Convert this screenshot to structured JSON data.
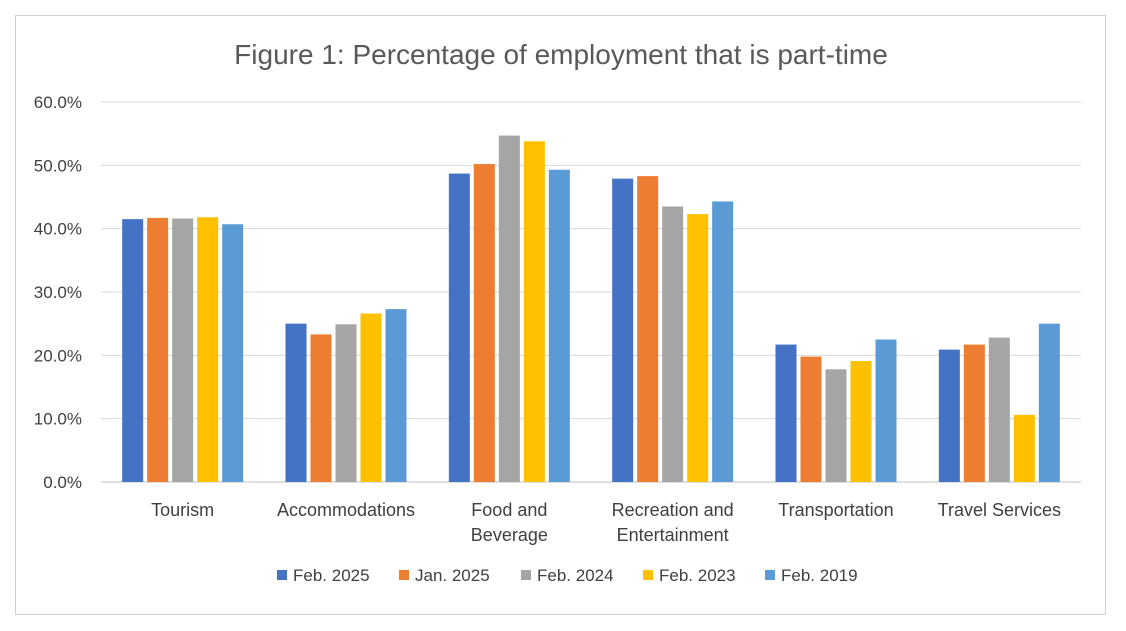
{
  "chart_data": {
    "type": "bar",
    "title": "Figure 1: Percentage of employment that is part-time",
    "categories": [
      [
        "Tourism"
      ],
      [
        "Accommodations"
      ],
      [
        "Food and",
        "Beverage"
      ],
      [
        "Recreation and",
        "Entertainment"
      ],
      [
        "Transportation"
      ],
      [
        "Travel Services"
      ]
    ],
    "series": [
      {
        "name": "Feb. 2025",
        "color": "#4472C4",
        "values": [
          41.5,
          25.0,
          48.7,
          47.9,
          21.7,
          20.9
        ]
      },
      {
        "name": "Jan. 2025",
        "color": "#ED7D31",
        "values": [
          41.7,
          23.3,
          50.2,
          48.3,
          19.8,
          21.7
        ]
      },
      {
        "name": "Feb. 2024",
        "color": "#A5A5A5",
        "values": [
          41.6,
          24.9,
          54.7,
          43.5,
          17.8,
          22.8
        ]
      },
      {
        "name": "Feb. 2023",
        "color": "#FFC000",
        "values": [
          41.8,
          26.6,
          53.8,
          42.3,
          19.1,
          10.6
        ]
      },
      {
        "name": "Feb. 2019",
        "color": "#5B9BD5",
        "values": [
          40.7,
          27.3,
          49.3,
          44.3,
          22.5,
          25.0
        ]
      }
    ],
    "yticks": [
      "0.0%",
      "10.0%",
      "20.0%",
      "30.0%",
      "40.0%",
      "50.0%",
      "60.0%"
    ],
    "ylim": [
      0,
      60
    ],
    "grid": true,
    "legend_position": "bottom"
  }
}
